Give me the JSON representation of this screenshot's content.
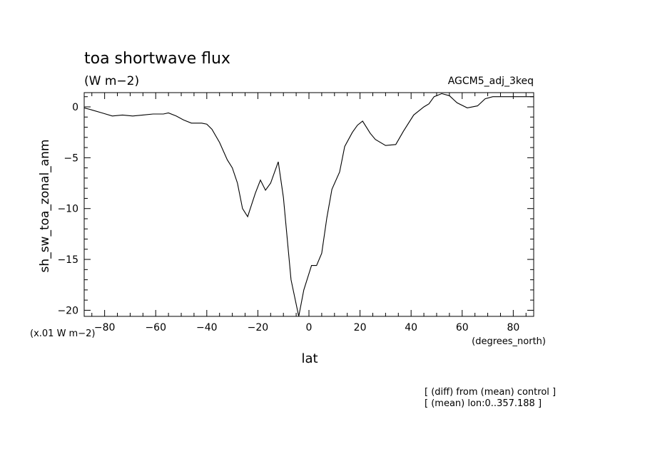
{
  "chart_data": {
    "type": "line",
    "title": "toa shortwave flux",
    "units_label": "(W m−2)",
    "dataset_label": "AGCM5_adj_3keq",
    "xlabel": "lat",
    "x_units_label": "(degrees_north)",
    "ylabel": "sh_sw_toa_zonal_anm",
    "y_scale_label": "(x.01 W m−2)",
    "xlim": [
      -88,
      88
    ],
    "ylim": [
      -20.6,
      1.4
    ],
    "x_ticks": [
      -80,
      -60,
      -40,
      -20,
      0,
      20,
      40,
      60,
      80
    ],
    "x_tick_labels": [
      "−80",
      "−60",
      "−40",
      "−20",
      "0",
      "20",
      "40",
      "60",
      "80"
    ],
    "y_ticks": [
      0,
      -5,
      -10,
      -15,
      -20
    ],
    "y_tick_labels": [
      "0",
      "−5",
      "−10",
      "−15",
      "−20"
    ],
    "grid": false,
    "x": [
      -88,
      -85,
      -81,
      -77,
      -73,
      -69,
      -65,
      -61,
      -57,
      -55,
      -52,
      -49,
      -46,
      -42,
      -40,
      -38,
      -35,
      -32,
      -30,
      -28,
      -26,
      -24,
      -21,
      -19,
      -17,
      -15,
      -12,
      -10,
      -7,
      -4,
      -2,
      1,
      3,
      5,
      7,
      9,
      12,
      14,
      17,
      19,
      21,
      24,
      26,
      30,
      34,
      37,
      41,
      45,
      47,
      49,
      52,
      55,
      58,
      62,
      66,
      69,
      72,
      76,
      79,
      82,
      85,
      88
    ],
    "series": [
      {
        "values": [
          -0.1,
          -0.3,
          -0.6,
          -0.9,
          -0.8,
          -0.9,
          -0.8,
          -0.7,
          -0.7,
          -0.6,
          -0.9,
          -1.3,
          -1.6,
          -1.6,
          -1.7,
          -2.2,
          -3.5,
          -5.2,
          -6.0,
          -7.5,
          -10.0,
          -10.8,
          -8.5,
          -7.2,
          -8.2,
          -7.5,
          -5.4,
          -8.9,
          -17.0,
          -20.6,
          -18.0,
          -15.6,
          -15.6,
          -14.4,
          -10.9,
          -8.1,
          -6.4,
          -3.9,
          -2.5,
          -1.8,
          -1.4,
          -2.6,
          -3.2,
          -3.8,
          -3.7,
          -2.4,
          -0.8,
          0.0,
          0.3,
          1.0,
          1.3,
          1.1,
          0.4,
          -0.1,
          0.1,
          0.8,
          1.0,
          1.0,
          1.0,
          1.0,
          1.0,
          1.0
        ]
      }
    ]
  },
  "annotations": [
    "[ (diff) from (mean) control ]",
    "[ (mean) lon:0..357.188 ]"
  ]
}
